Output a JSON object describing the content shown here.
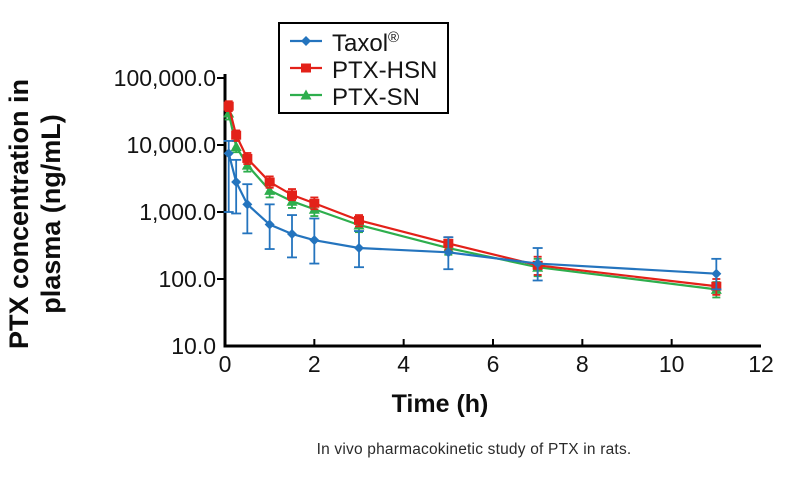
{
  "colors": {
    "taxol": "#2474be",
    "ptx_hsn": "#e32119",
    "ptx_sn": "#2eae4d",
    "axis": "#000000"
  },
  "y_axis": {
    "title_line1": "PTX concentration in",
    "title_line2": "plasma (ng/mL)",
    "tick_labels": [
      "100,000.0",
      "10,000.0",
      "1,000.0",
      "100.0",
      "10.0"
    ],
    "tick_values": [
      100000,
      10000,
      1000,
      100,
      10
    ]
  },
  "x_axis": {
    "title": "Time (h)",
    "tick_labels": [
      "0",
      "2",
      "4",
      "6",
      "8",
      "10",
      "12"
    ],
    "tick_values": [
      0,
      2,
      4,
      6,
      8,
      10,
      12
    ]
  },
  "legend": {
    "items": [
      {
        "label": "Taxol",
        "sup": "®",
        "marker": "diamond",
        "color": "#2474be"
      },
      {
        "label": "PTX-HSN",
        "sup": "",
        "marker": "square",
        "color": "#e32119"
      },
      {
        "label": "PTX-SN",
        "sup": "",
        "marker": "triangle",
        "color": "#2eae4d"
      }
    ]
  },
  "caption": "In vivo pharmacokinetic study of PTX in rats.",
  "chart_data": {
    "type": "line",
    "title": "",
    "xlabel": "Time (h)",
    "ylabel": "PTX concentration in plasma (ng/mL)",
    "yscale": "log",
    "xlim": [
      0,
      12
    ],
    "ylim": [
      10,
      100000
    ],
    "grid": false,
    "legend_position": "top-center-inside",
    "x": [
      0.083,
      0.25,
      0.5,
      1,
      1.5,
      2,
      3,
      5,
      7,
      11
    ],
    "series": [
      {
        "name": "Taxol®",
        "color": "#2474be",
        "marker": "diamond",
        "values": [
          7500,
          2800,
          1300,
          650,
          470,
          380,
          290,
          250,
          170,
          120
        ],
        "err_lo": [
          1000,
          950,
          480,
          280,
          210,
          170,
          150,
          140,
          95,
          70
        ],
        "err_hi": [
          11500,
          6000,
          2600,
          1300,
          900,
          800,
          520,
          420,
          290,
          200
        ]
      },
      {
        "name": "PTX-HSN",
        "color": "#e32119",
        "marker": "square",
        "values": [
          38000,
          14000,
          6300,
          2800,
          1800,
          1350,
          750,
          340,
          160,
          78
        ],
        "err_lo": [
          32000,
          11500,
          5200,
          2300,
          1500,
          1100,
          610,
          275,
          115,
          58
        ],
        "err_hi": [
          45000,
          16500,
          7600,
          3400,
          2200,
          1650,
          900,
          420,
          215,
          100
        ]
      },
      {
        "name": "PTX-SN",
        "color": "#2eae4d",
        "marker": "triangle",
        "values": [
          30000,
          9500,
          5000,
          2100,
          1450,
          1100,
          640,
          290,
          150,
          70
        ],
        "err_lo": [
          24000,
          7800,
          4000,
          1650,
          1150,
          870,
          500,
          230,
          110,
          53
        ],
        "err_hi": [
          36000,
          11500,
          6100,
          2600,
          1800,
          1400,
          800,
          360,
          200,
          90
        ]
      }
    ]
  }
}
